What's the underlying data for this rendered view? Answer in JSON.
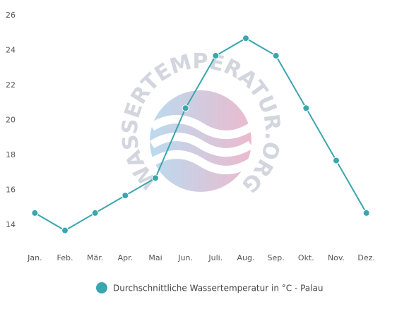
{
  "chart_data": {
    "type": "line",
    "watermark": "WASSERTEMPERATUR.ORG",
    "categories": [
      "Jan.",
      "Feb.",
      "Mär.",
      "Apr.",
      "Mai",
      "Jun.",
      "Juli.",
      "Aug.",
      "Sep.",
      "Okt.",
      "Nov.",
      "Dez."
    ],
    "series": [
      {
        "name": "Durchschnittliche Wassertemperatur in °C - Palau",
        "color": "#3aa6ae",
        "values": [
          14.7,
          13.7,
          14.7,
          15.7,
          16.7,
          20.7,
          23.7,
          24.7,
          23.7,
          20.7,
          17.7,
          14.7
        ]
      }
    ],
    "ylim": [
      13,
      26
    ],
    "yticks": [
      14,
      16,
      18,
      20,
      22,
      24,
      26
    ],
    "grid": false
  }
}
